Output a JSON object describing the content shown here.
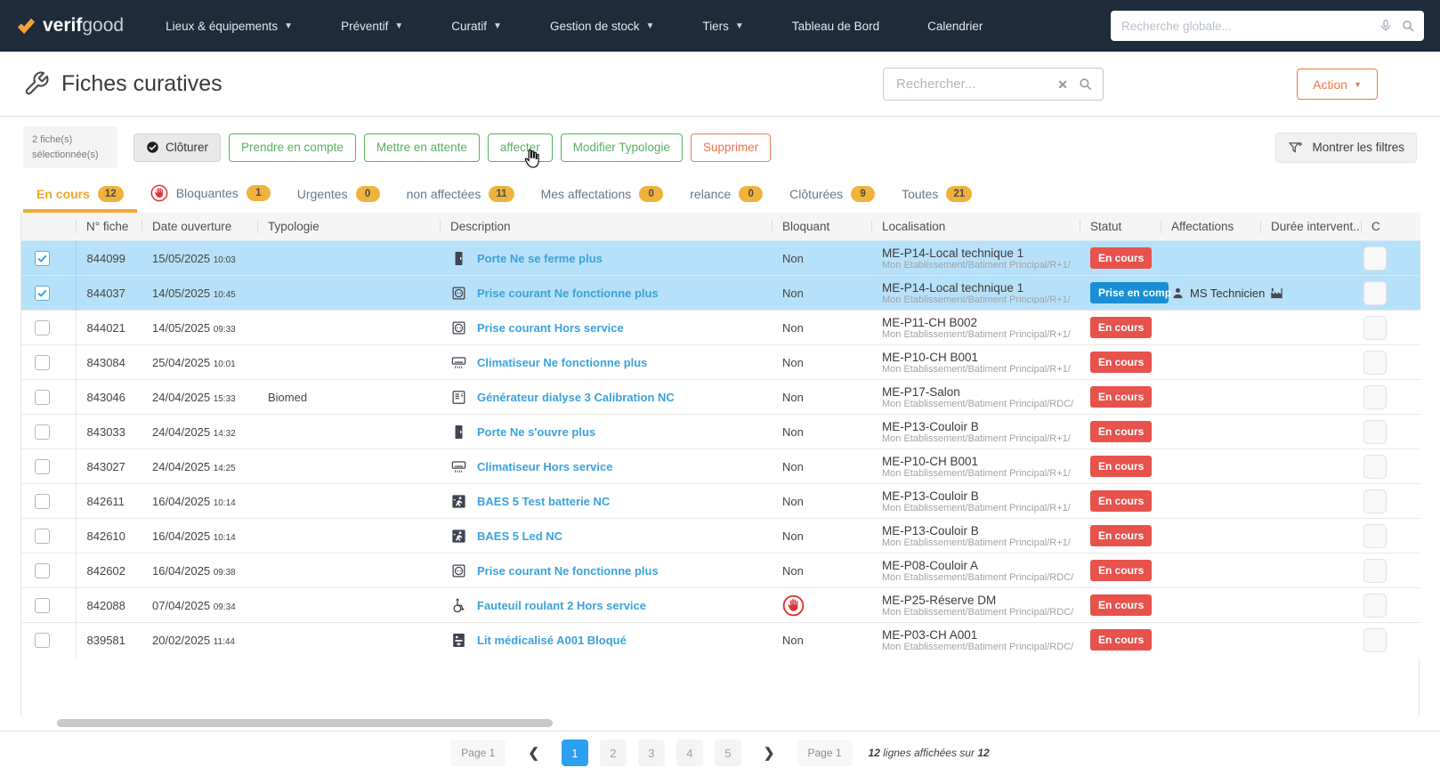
{
  "navbar": {
    "brand_bold": "verif",
    "brand_light": "good",
    "items": [
      {
        "label": "Lieux & équipements",
        "has_menu": true
      },
      {
        "label": "Préventif",
        "has_menu": true
      },
      {
        "label": "Curatif",
        "has_menu": true
      },
      {
        "label": "Gestion de stock",
        "has_menu": true
      },
      {
        "label": "Tiers",
        "has_menu": true
      },
      {
        "label": "Tableau de Bord",
        "has_menu": false
      },
      {
        "label": "Calendrier",
        "has_menu": false
      }
    ],
    "global_search_placeholder": "Recherche globale..."
  },
  "header": {
    "title": "Fiches curatives",
    "search_placeholder": "Rechercher...",
    "action_label": "Action"
  },
  "selection_bar": {
    "count_text": "2 fiche(s) sélectionnée(s)",
    "buttons": [
      {
        "label": "Clôturer",
        "style": "dark",
        "icon": "check-circle-icon"
      },
      {
        "label": "Prendre en compte",
        "style": "green"
      },
      {
        "label": "Mettre en attente",
        "style": "green"
      },
      {
        "label": "affecter",
        "style": "green"
      },
      {
        "label": "Modifier Typologie",
        "style": "green"
      },
      {
        "label": "Supprimer",
        "style": "orange"
      }
    ],
    "show_filters_label": "Montrer les filtres"
  },
  "tabs": [
    {
      "label": "En cours",
      "count": "12",
      "active": true
    },
    {
      "label": "Bloquantes",
      "count": "1",
      "icon": "stop-hand-icon"
    },
    {
      "label": "Urgentes",
      "count": "0"
    },
    {
      "label": "non affectées",
      "count": "11"
    },
    {
      "label": "Mes affectations",
      "count": "0"
    },
    {
      "label": "relance",
      "count": "0"
    },
    {
      "label": "Clôturées",
      "count": "9"
    },
    {
      "label": "Toutes",
      "count": "21"
    }
  ],
  "table": {
    "columns": [
      "",
      "N° fiche",
      "Date ouverture",
      "Typologie",
      "Description",
      "Bloquant",
      "Localisation",
      "Statut",
      "Affectations",
      "Durée intervent...",
      "C"
    ],
    "rows": [
      {
        "selected": true,
        "num": "844099",
        "date": "15/05/2025",
        "time": "10:03",
        "typology": "",
        "desc_icon": "door-icon",
        "description": "Porte Ne se ferme plus",
        "bloquant": "Non",
        "blocking_icon": false,
        "loc_name": "ME-P14-Local technique 1",
        "loc_path": "Mon Etablissement/Batiment Principal/R+1/",
        "status": "En cours",
        "status_color": "red",
        "assignment": ""
      },
      {
        "selected": true,
        "num": "844037",
        "date": "14/05/2025",
        "time": "10:45",
        "typology": "",
        "desc_icon": "outlet-icon",
        "description": "Prise courant Ne fonctionne plus",
        "bloquant": "Non",
        "blocking_icon": false,
        "loc_name": "ME-P14-Local technique 1",
        "loc_path": "Mon Etablissement/Batiment Principal/R+1/",
        "status": "Prise en comp",
        "status_color": "blue",
        "assignment": "MS Technicien"
      },
      {
        "selected": false,
        "num": "844021",
        "date": "14/05/2025",
        "time": "09:33",
        "typology": "",
        "desc_icon": "outlet-icon",
        "description": "Prise courant Hors service",
        "bloquant": "Non",
        "blocking_icon": false,
        "loc_name": "ME-P11-CH B002",
        "loc_path": "Mon Etablissement/Batiment Principal/R+1/",
        "status": "En cours",
        "status_color": "red",
        "assignment": ""
      },
      {
        "selected": false,
        "num": "843084",
        "date": "25/04/2025",
        "time": "10:01",
        "typology": "",
        "desc_icon": "ac-unit-icon",
        "description": "Climatiseur Ne fonctionne plus",
        "bloquant": "Non",
        "blocking_icon": false,
        "loc_name": "ME-P10-CH B001",
        "loc_path": "Mon Etablissement/Batiment Principal/R+1/",
        "status": "En cours",
        "status_color": "red",
        "assignment": ""
      },
      {
        "selected": false,
        "num": "843046",
        "date": "24/04/2025",
        "time": "15:33",
        "typology": "Biomed",
        "desc_icon": "generator-icon",
        "description": "Générateur dialyse 3 Calibration NC",
        "bloquant": "Non",
        "blocking_icon": false,
        "loc_name": "ME-P17-Salon",
        "loc_path": "Mon Etablissement/Batiment Principal/RDC/",
        "status": "En cours",
        "status_color": "red",
        "assignment": ""
      },
      {
        "selected": false,
        "num": "843033",
        "date": "24/04/2025",
        "time": "14:32",
        "typology": "",
        "desc_icon": "door-icon",
        "description": "Porte Ne s'ouvre plus",
        "bloquant": "Non",
        "blocking_icon": false,
        "loc_name": "ME-P13-Couloir B",
        "loc_path": "Mon Etablissement/Batiment Principal/R+1/",
        "status": "En cours",
        "status_color": "red",
        "assignment": ""
      },
      {
        "selected": false,
        "num": "843027",
        "date": "24/04/2025",
        "time": "14:25",
        "typology": "",
        "desc_icon": "ac-unit-icon",
        "description": "Climatiseur Hors service",
        "bloquant": "Non",
        "blocking_icon": false,
        "loc_name": "ME-P10-CH B001",
        "loc_path": "Mon Etablissement/Batiment Principal/R+1/",
        "status": "En cours",
        "status_color": "red",
        "assignment": ""
      },
      {
        "selected": false,
        "num": "842611",
        "date": "16/04/2025",
        "time": "10:14",
        "typology": "",
        "desc_icon": "emergency-exit-icon",
        "description": "BAES 5 Test batterie NC",
        "bloquant": "Non",
        "blocking_icon": false,
        "loc_name": "ME-P13-Couloir B",
        "loc_path": "Mon Etablissement/Batiment Principal/R+1/",
        "status": "En cours",
        "status_color": "red",
        "assignment": ""
      },
      {
        "selected": false,
        "num": "842610",
        "date": "16/04/2025",
        "time": "10:14",
        "typology": "",
        "desc_icon": "emergency-exit-icon",
        "description": "BAES 5 Led NC",
        "bloquant": "Non",
        "blocking_icon": false,
        "loc_name": "ME-P13-Couloir B",
        "loc_path": "Mon Etablissement/Batiment Principal/R+1/",
        "status": "En cours",
        "status_color": "red",
        "assignment": ""
      },
      {
        "selected": false,
        "num": "842602",
        "date": "16/04/2025",
        "time": "09:38",
        "typology": "",
        "desc_icon": "outlet-icon",
        "description": "Prise courant Ne fonctionne plus",
        "bloquant": "Non",
        "blocking_icon": false,
        "loc_name": "ME-P08-Couloir A",
        "loc_path": "Mon Etablissement/Batiment Principal/RDC/",
        "status": "En cours",
        "status_color": "red",
        "assignment": ""
      },
      {
        "selected": false,
        "num": "842088",
        "date": "07/04/2025",
        "time": "09:34",
        "typology": "",
        "desc_icon": "wheelchair-icon",
        "description": "Fauteuil roulant 2 Hors service",
        "bloquant": "",
        "blocking_icon": true,
        "loc_name": "ME-P25-Réserve DM",
        "loc_path": "Mon Etablissement/Batiment Principal/RDC/",
        "status": "En cours",
        "status_color": "red",
        "assignment": ""
      },
      {
        "selected": false,
        "num": "839581",
        "date": "20/02/2025",
        "time": "11:44",
        "typology": "",
        "desc_icon": "medical-bed-icon",
        "description": "Lit médicalisé A001 Bloqué",
        "bloquant": "Non",
        "blocking_icon": false,
        "loc_name": "ME-P03-CH A001",
        "loc_path": "Mon Etablissement/Batiment Principal/RDC/",
        "status": "En cours",
        "status_color": "red",
        "assignment": ""
      }
    ]
  },
  "pagination": {
    "page_label_left": "Page 1",
    "pages": [
      "1",
      "2",
      "3",
      "4",
      "5"
    ],
    "active_page": "1",
    "page_label_right": "Page 1",
    "summary_count": "12",
    "summary_text": "lignes affichées sur",
    "summary_total": "12"
  },
  "colors": {
    "navbar_bg": "#1d2b3a",
    "accent_orange": "#f2a42e",
    "action_orange": "#ee7a44",
    "green": "#56b45c",
    "delete_orange": "#f0714a",
    "badge_red": "#e8524c",
    "badge_blue": "#1b8fd4",
    "badge_amber": "#efb33c",
    "link_blue": "#3aa2dc",
    "selected_row": "#b7e1f8",
    "pagination_active": "#2b9ff0"
  }
}
